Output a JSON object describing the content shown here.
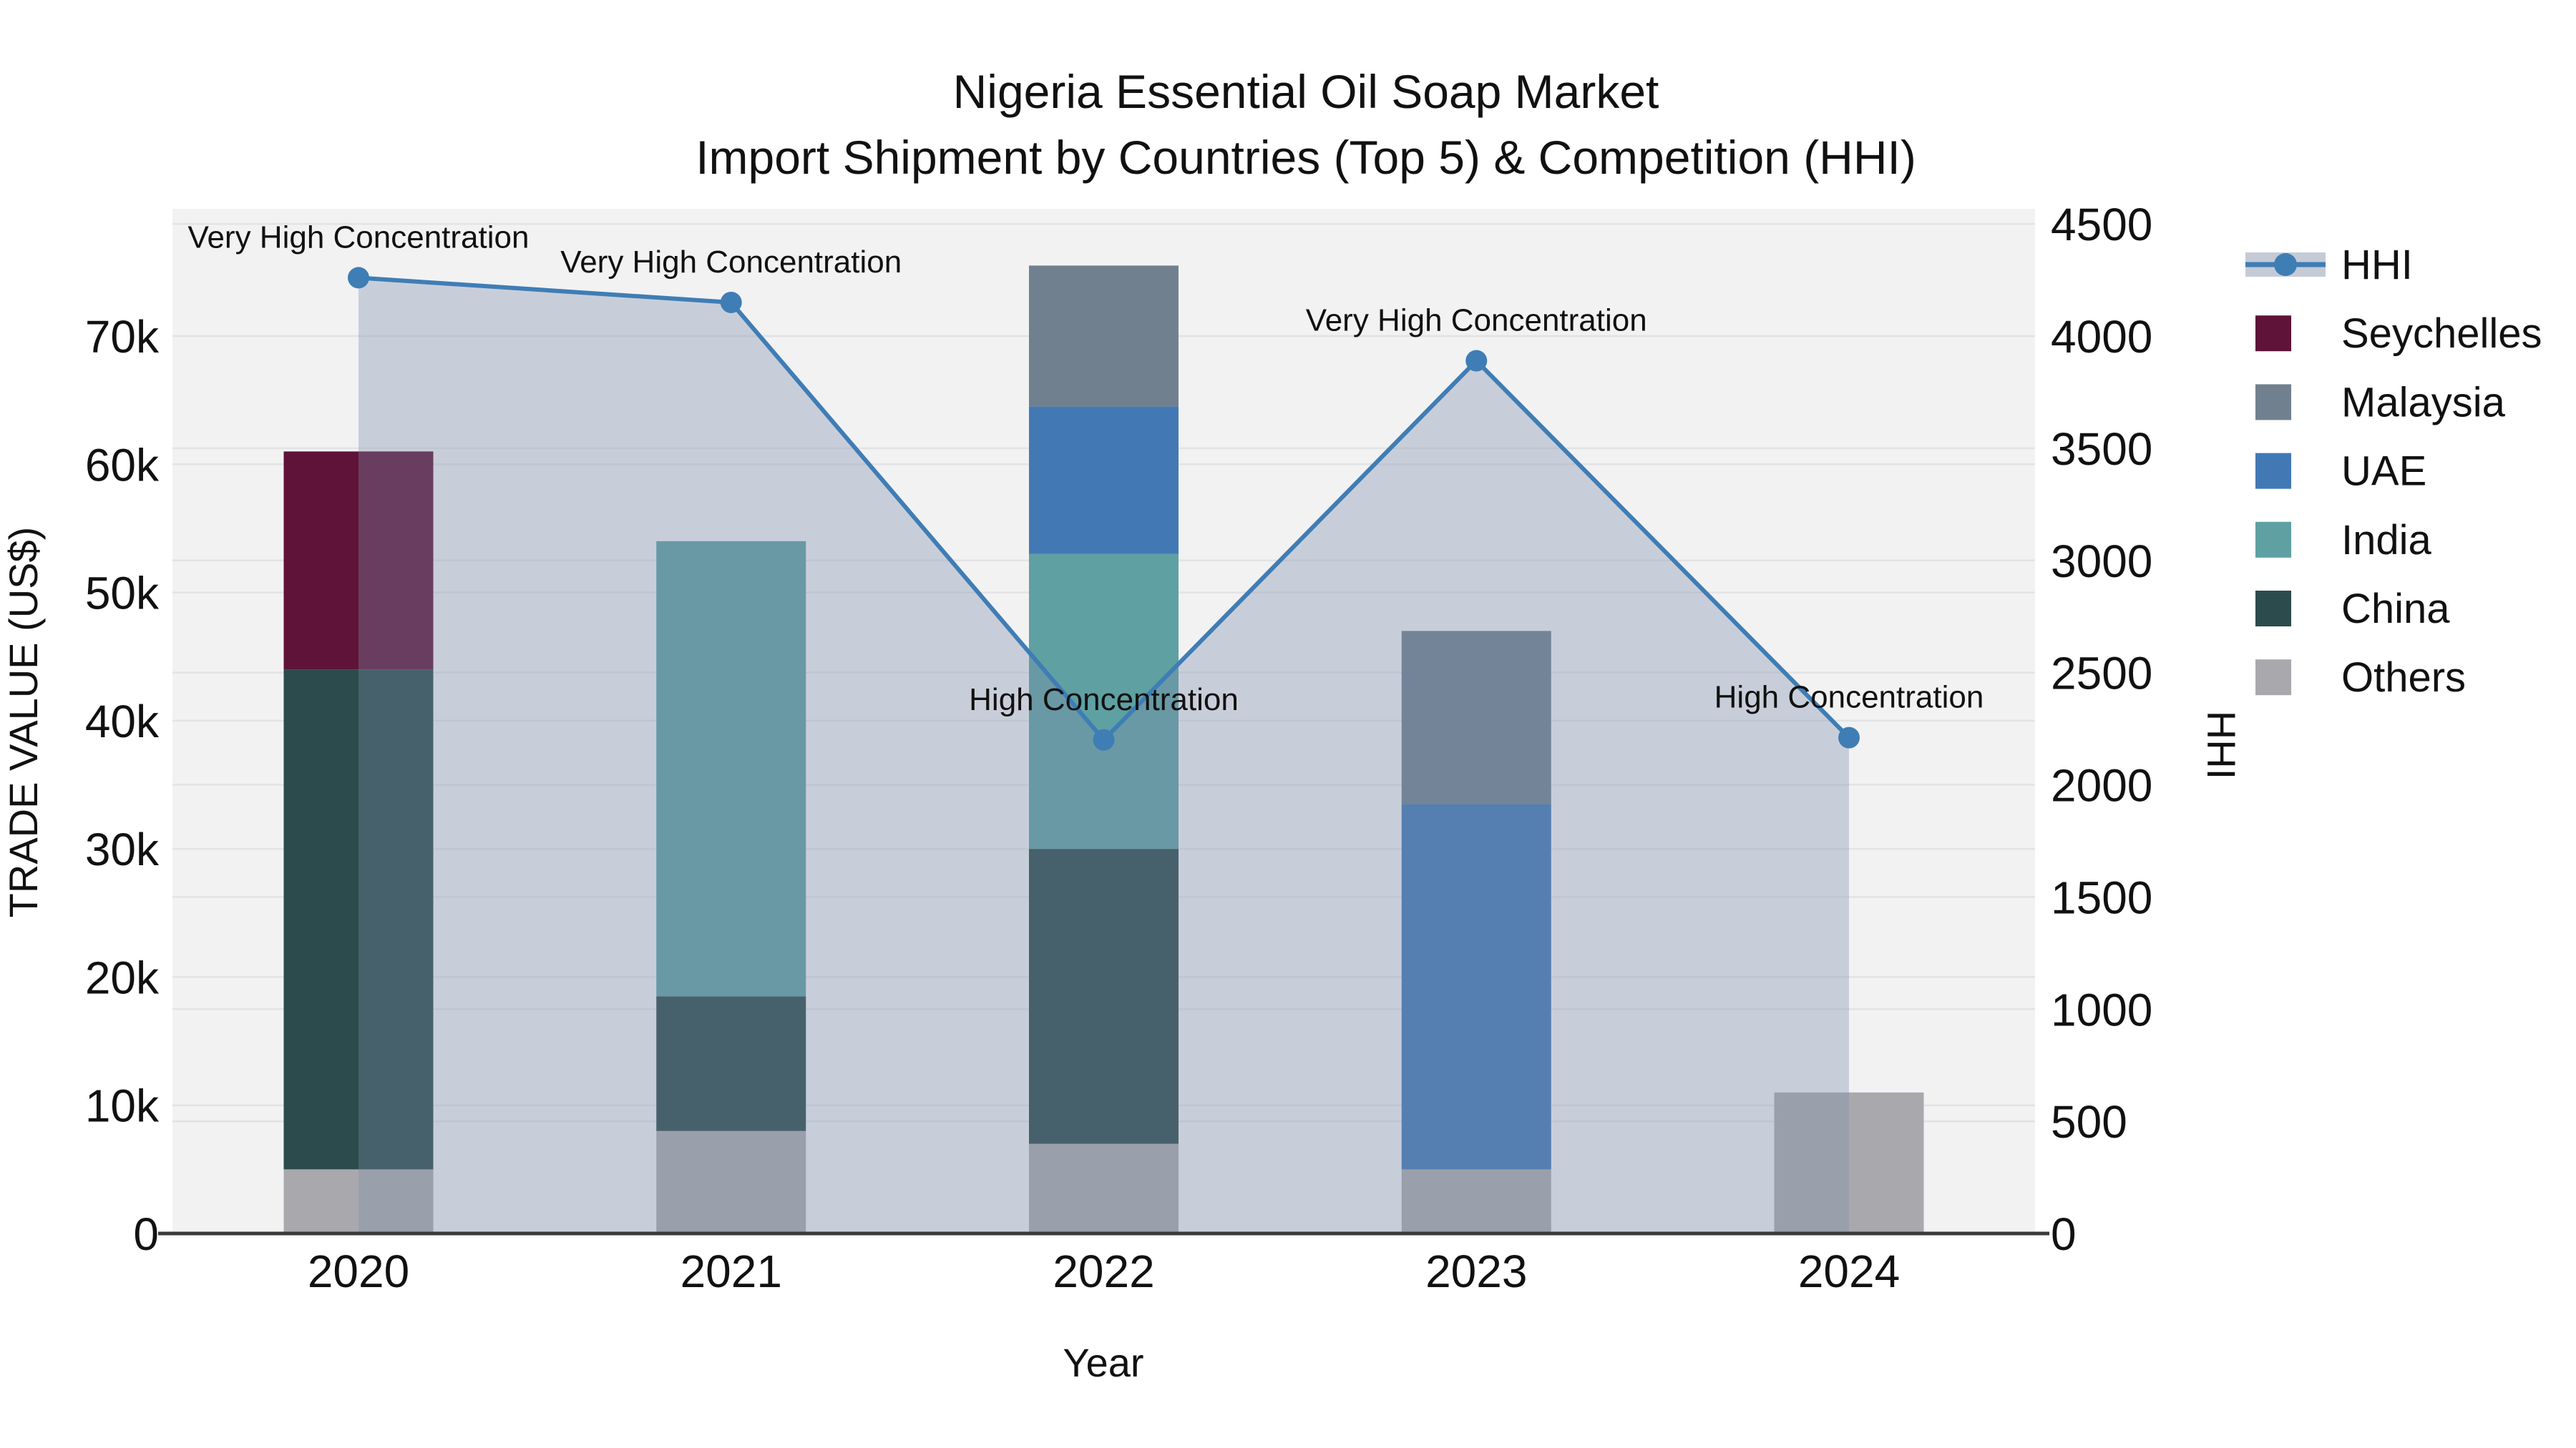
{
  "chart_data": {
    "type": "bar+line",
    "title": "Nigeria Essential Oil Soap Market",
    "subtitle": "Import Shipment by Countries (Top 5) & Competition (HHI)",
    "categories": [
      "2020",
      "2021",
      "2022",
      "2023",
      "2024"
    ],
    "xlabel": "Year",
    "ylabel_left": "TRADE VALUE (US$)",
    "ylabel_right": "HHI",
    "ylim_left": [
      0,
      79900
    ],
    "ylim_right": [
      0,
      4570
    ],
    "grid": "on",
    "legend_position": "right",
    "bar_series_bottom_to_top": [
      {
        "name": "Others",
        "color": "#a9a9ad",
        "values": [
          5000,
          8000,
          7000,
          5000,
          11000
        ]
      },
      {
        "name": "China",
        "color": "#2c4b4c",
        "values": [
          39000,
          10500,
          23000,
          0,
          0
        ]
      },
      {
        "name": "India",
        "color": "#5fa0a3",
        "values": [
          0,
          35500,
          23000,
          0,
          0
        ]
      },
      {
        "name": "UAE",
        "color": "#4279b5",
        "values": [
          0,
          0,
          11500,
          28500,
          0
        ]
      },
      {
        "name": "Malaysia",
        "color": "#71808f",
        "values": [
          0,
          0,
          11000,
          13500,
          0
        ]
      },
      {
        "name": "Seychelles",
        "color": "#5f1338",
        "values": [
          17000,
          0,
          0,
          0,
          0
        ]
      }
    ],
    "bar_totals": [
      61000,
      54000,
      75500,
      47000,
      11000
    ],
    "line_series": {
      "name": "HHI",
      "color": "#3f7db5",
      "area_fill": "rgba(124,141,170,0.35)",
      "values": [
        4260,
        4150,
        2200,
        3890,
        2210
      ]
    },
    "annotations": [
      {
        "category": "2020",
        "text": "Very High Concentration"
      },
      {
        "category": "2021",
        "text": "Very High Concentration"
      },
      {
        "category": "2022",
        "text": "High Concentration"
      },
      {
        "category": "2023",
        "text": "Very High Concentration"
      },
      {
        "category": "2024",
        "text": "High Concentration"
      }
    ],
    "yticks_left": {
      "values": [
        0,
        10000,
        20000,
        30000,
        40000,
        50000,
        60000,
        70000
      ],
      "labels": [
        "0",
        "10k",
        "20k",
        "30k",
        "40k",
        "50k",
        "60k",
        "70k"
      ]
    },
    "yticks_right": {
      "values": [
        0,
        500,
        1000,
        1500,
        2000,
        2500,
        3000,
        3500,
        4000,
        4500
      ],
      "labels": [
        "0",
        "500",
        "1000",
        "1500",
        "2000",
        "2500",
        "3000",
        "3500",
        "4000",
        "4500"
      ]
    }
  },
  "legend": {
    "entries": [
      {
        "label": "HHI",
        "type": "line",
        "color": "#3f7db5",
        "band": "#c4cbd6"
      },
      {
        "label": "Seychelles",
        "type": "swatch",
        "color": "#5f1338"
      },
      {
        "label": "Malaysia",
        "type": "swatch",
        "color": "#71808f"
      },
      {
        "label": "UAE",
        "type": "swatch",
        "color": "#4279b5"
      },
      {
        "label": "India",
        "type": "swatch",
        "color": "#5fa0a3"
      },
      {
        "label": "China",
        "type": "swatch",
        "color": "#2c4b4c"
      },
      {
        "label": "Others",
        "type": "swatch",
        "color": "#a9a9ad"
      }
    ]
  },
  "colors": {
    "plot_bg": "#f2f2f3",
    "page_bg": "#ffffff",
    "grid": "#e3e3e6",
    "axis_line": "#3a3a3a",
    "text": "#111111"
  }
}
